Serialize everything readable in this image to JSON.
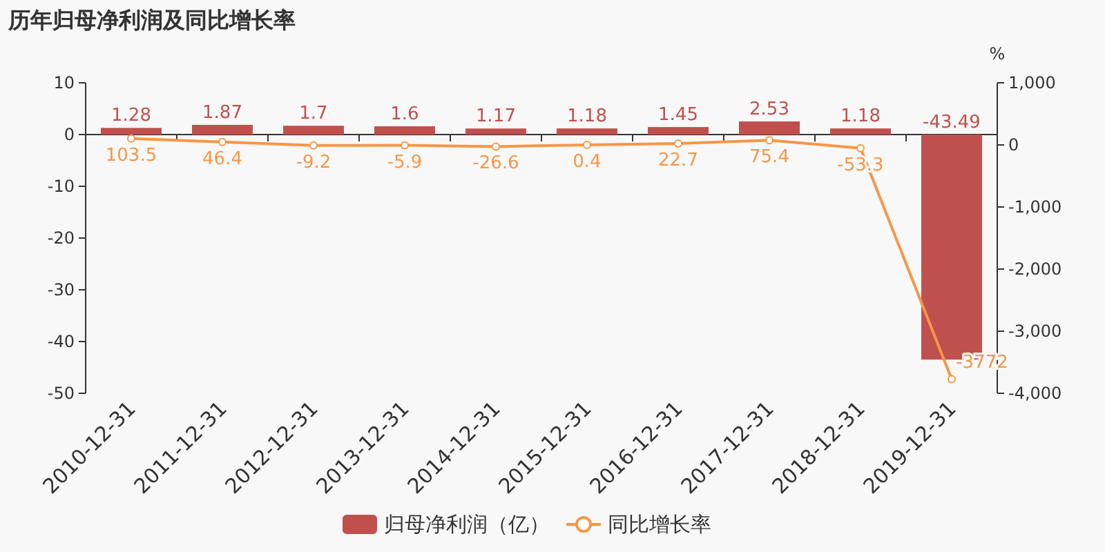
{
  "chart_data": {
    "type": "bar",
    "title": "历年归母净利润及同比增长率",
    "categories": [
      "2010-12-31",
      "2011-12-31",
      "2012-12-31",
      "2013-12-31",
      "2014-12-31",
      "2015-12-31",
      "2016-12-31",
      "2017-12-31",
      "2018-12-31",
      "2019-12-31"
    ],
    "series": [
      {
        "name": "归母净利润（亿）",
        "color": "#c0504d",
        "values": [
          1.28,
          1.87,
          1.7,
          1.6,
          1.17,
          1.18,
          1.45,
          2.53,
          1.18,
          -43.49
        ]
      },
      {
        "name": "同比增长率",
        "type": "line",
        "axis": "y2",
        "color": "#f79646",
        "values": [
          103.5,
          46.4,
          -9.2,
          -5.9,
          -26.6,
          0.4,
          22.7,
          75.4,
          -53.3,
          -3772
        ]
      }
    ],
    "ylim": [
      -50,
      10
    ],
    "yticks": [
      -50,
      -40,
      -30,
      -20,
      -10,
      0,
      10
    ],
    "y2lim": [
      -4000,
      1000
    ],
    "y2ticks": [
      {
        "value": -4000,
        "label": "-4,000"
      },
      {
        "value": -3000,
        "label": "-3,000"
      },
      {
        "value": -2000,
        "label": "-2,000"
      },
      {
        "value": -1000,
        "label": "-1,000"
      },
      0,
      {
        "value": 1000,
        "label": "1,000"
      }
    ],
    "y2label": "%",
    "data_labels": true,
    "marker": "circle",
    "legend": "bottom"
  }
}
